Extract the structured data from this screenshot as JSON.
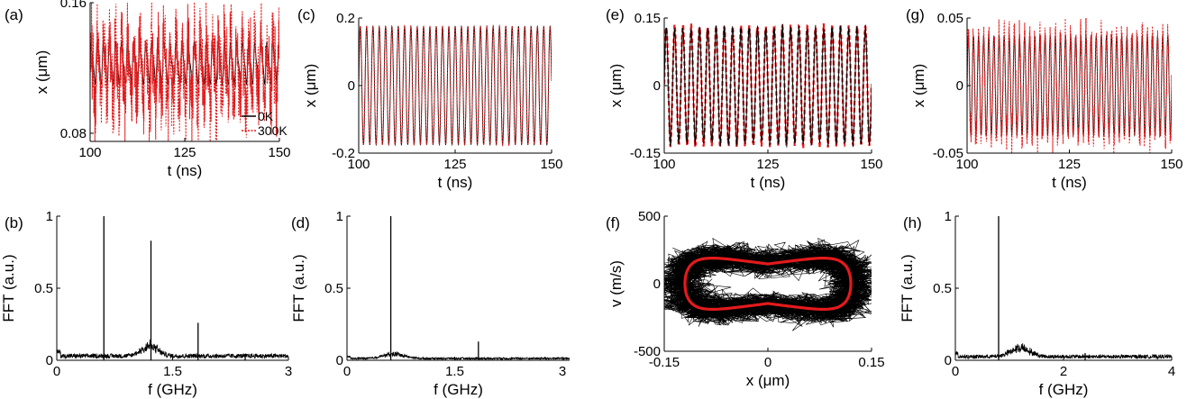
{
  "chart_data": [
    {
      "panel_label": "(a)",
      "type": "line",
      "xlabel": "t (ns)",
      "ylabel": "x (μm)",
      "xlim": [
        100,
        150
      ],
      "ylim": [
        0.075,
        0.16
      ],
      "xticks": [
        100,
        125,
        150
      ],
      "xtick_labels": [
        "100",
        "125",
        "150"
      ],
      "yticks": [
        0.08,
        0.16
      ],
      "ytick_labels": [
        "0.08",
        "0.16"
      ],
      "legend_position": "bottom-right",
      "series": [
        {
          "name": "0K",
          "color": "#000000",
          "dash": "solid",
          "mean": 0.123,
          "amplitude": 0.011,
          "period_ns": 1.6,
          "noise": 0.0
        },
        {
          "name": "300K",
          "color": "#e41a1c",
          "dash": "dotted",
          "mean": 0.118,
          "amplitude": 0.018,
          "period_ns": 1.6,
          "noise": 0.011
        }
      ]
    },
    {
      "panel_label": "(b)",
      "type": "line",
      "xlabel": "f (GHz)",
      "ylabel": "FFT (a.u.)",
      "xlim": [
        0,
        3
      ],
      "ylim": [
        0,
        1
      ],
      "xticks": [
        0,
        1.5,
        3
      ],
      "xtick_labels": [
        "0",
        "1.5",
        "3"
      ],
      "yticks": [
        0,
        0.5,
        1
      ],
      "ytick_labels": [
        "0",
        "0.5",
        "1"
      ],
      "peaks": [
        {
          "f": 0.61,
          "amp": 1.0
        },
        {
          "f": 1.22,
          "amp": 0.83
        },
        {
          "f": 1.83,
          "amp": 0.26
        },
        {
          "f": 2.44,
          "amp": 0.03
        }
      ],
      "noise_floor": 0.035,
      "bumps": [
        {
          "f": 1.2,
          "amp": 0.07,
          "width": 0.15
        }
      ]
    },
    {
      "panel_label": "(c)",
      "type": "line",
      "xlabel": "t (ns)",
      "ylabel": "x (μm)",
      "xlim": [
        100,
        150
      ],
      "ylim": [
        -0.2,
        0.2
      ],
      "xticks": [
        100,
        125,
        150
      ],
      "xtick_labels": [
        "100",
        "125",
        "150"
      ],
      "yticks": [
        -0.2,
        0,
        0.2
      ],
      "ytick_labels": [
        "-0.2",
        "0",
        "0.2"
      ],
      "series": [
        {
          "color": "#000000",
          "dash": "solid",
          "mean": 0.0,
          "amplitude": 0.175,
          "period_ns": 1.64,
          "noise": 0.0
        },
        {
          "color": "#e41a1c",
          "dash": "dotted",
          "mean": 0.0,
          "amplitude": 0.175,
          "period_ns": 1.64,
          "noise": 0.002
        }
      ]
    },
    {
      "panel_label": "(d)",
      "type": "line",
      "xlabel": "f (GHz)",
      "ylabel": "FFT (a.u.)",
      "xlim": [
        0,
        3.1
      ],
      "ylim": [
        0,
        1
      ],
      "xticks": [
        0,
        1.5,
        3
      ],
      "xtick_labels": [
        "0",
        "1.5",
        "3"
      ],
      "yticks": [
        0,
        0.5,
        1
      ],
      "ytick_labels": [
        "0",
        "0.5",
        "1"
      ],
      "peaks": [
        {
          "f": 0.61,
          "amp": 1.0
        },
        {
          "f": 1.83,
          "amp": 0.13
        }
      ],
      "noise_floor": 0.015,
      "bumps": [
        {
          "f": 0.65,
          "amp": 0.03,
          "width": 0.2
        }
      ]
    },
    {
      "panel_label": "(e)",
      "type": "line",
      "xlabel": "t (ns)",
      "ylabel": "x (μm)",
      "xlim": [
        100,
        150
      ],
      "ylim": [
        -0.15,
        0.15
      ],
      "xticks": [
        100,
        125,
        150
      ],
      "xtick_labels": [
        "100",
        "125",
        "150"
      ],
      "yticks": [
        -0.15,
        0,
        0.15
      ],
      "ytick_labels": [
        "-0.15",
        "0",
        "0.15"
      ],
      "series": [
        {
          "color": "#e41a1c",
          "dash": "dashed",
          "mean": 0.0,
          "amplitude": 0.13,
          "period_ns": 2.0,
          "noise": 0.004
        },
        {
          "color": "#000000",
          "dash": "solid",
          "mean": 0.0,
          "amplitude": 0.125,
          "period_ns": 2.0,
          "noise": 0.006
        }
      ]
    },
    {
      "panel_label": "(f)",
      "type": "line",
      "xlabel": "x (μm)",
      "ylabel": "v (m/s)",
      "xlim": [
        -0.15,
        0.15
      ],
      "ylim": [
        -500,
        500
      ],
      "xticks": [
        -0.15,
        0,
        0.15
      ],
      "xtick_labels": [
        "-0.15",
        "0",
        "0.15"
      ],
      "yticks": [
        -500,
        0,
        500
      ],
      "ytick_labels": [
        "-500",
        "0",
        "500"
      ],
      "series": [
        {
          "color": "#000000",
          "description_kind": "noisy-orbits",
          "x_amp": 0.125,
          "v_amp": 330,
          "waist": 0.35
        },
        {
          "color": "#e41a1c",
          "description_kind": "limit-cycle",
          "x_amp": 0.12,
          "v_amp": 270,
          "waist": 0.4
        }
      ]
    },
    {
      "panel_label": "(g)",
      "type": "line",
      "xlabel": "t (ns)",
      "ylabel": "x (μm)",
      "xlim": [
        100,
        150
      ],
      "ylim": [
        -0.05,
        0.05
      ],
      "xticks": [
        100,
        125,
        150
      ],
      "xtick_labels": [
        "100",
        "125",
        "150"
      ],
      "yticks": [
        -0.05,
        0,
        0.05
      ],
      "ytick_labels": [
        "-0.05",
        "0",
        "0.05"
      ],
      "series": [
        {
          "color": "#000000",
          "dash": "solid",
          "mean": 0.0,
          "amplitude": 0.037,
          "period_ns": 1.25,
          "noise": 0.0
        },
        {
          "color": "#e41a1c",
          "dash": "dotted",
          "mean": 0.0,
          "amplitude": 0.037,
          "period_ns": 1.25,
          "noise": 0.006
        }
      ]
    },
    {
      "panel_label": "(h)",
      "type": "line",
      "xlabel": "f (GHz)",
      "ylabel": "FFT (a.u.)",
      "xlim": [
        0,
        4
      ],
      "ylim": [
        0,
        1
      ],
      "xticks": [
        0,
        2,
        4
      ],
      "xtick_labels": [
        "0",
        "2",
        "4"
      ],
      "yticks": [
        0,
        0.5,
        1
      ],
      "ytick_labels": [
        "0",
        "0.5",
        "1"
      ],
      "peaks": [
        {
          "f": 0.8,
          "amp": 1.0
        },
        {
          "f": 2.4,
          "amp": 0.05
        }
      ],
      "noise_floor": 0.03,
      "bumps": [
        {
          "f": 1.2,
          "amp": 0.06,
          "width": 0.25
        }
      ]
    }
  ]
}
